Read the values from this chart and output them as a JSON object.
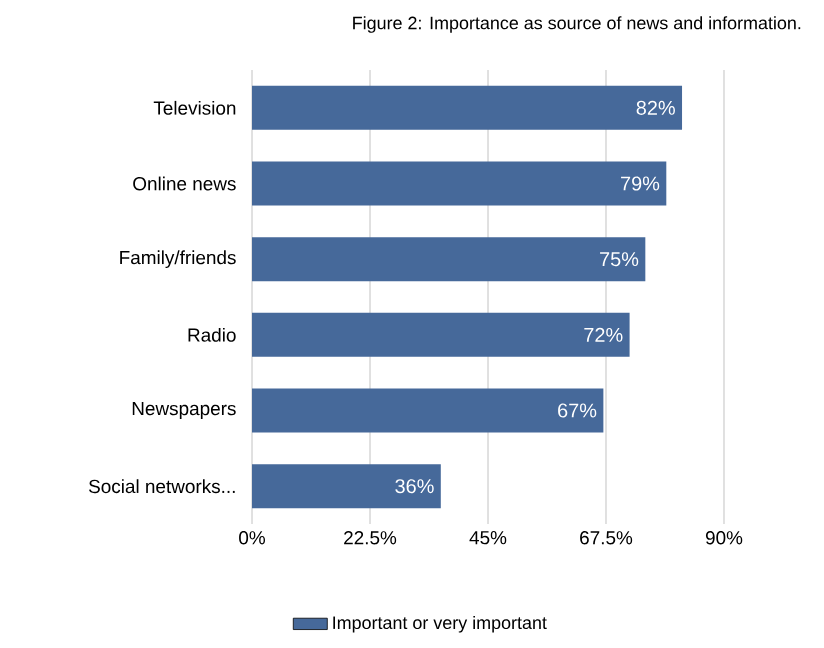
{
  "chart_data": {
    "type": "bar",
    "orientation": "horizontal",
    "title": "Figure 2: Importance as source of news and information.",
    "categories": [
      "Television",
      "Online news",
      "Family/friends",
      "Radio",
      "Newspapers",
      "Social networks..."
    ],
    "series": [
      {
        "name": "Important or very important",
        "color": "#46699a",
        "values": [
          82,
          79,
          75,
          72,
          67,
          36
        ],
        "value_labels": [
          "82%",
          "79%",
          "75%",
          "72%",
          "67%",
          "36%"
        ]
      }
    ],
    "xlim": [
      0,
      90
    ],
    "xticks": [
      {
        "value": 0,
        "label": "0%"
      },
      {
        "value": 22.5,
        "label": "22.5%"
      },
      {
        "value": 45,
        "label": "45%"
      },
      {
        "value": 67.5,
        "label": "67.5%"
      },
      {
        "value": 90,
        "label": "90%"
      }
    ],
    "grid": "x",
    "legend": "bottom"
  }
}
